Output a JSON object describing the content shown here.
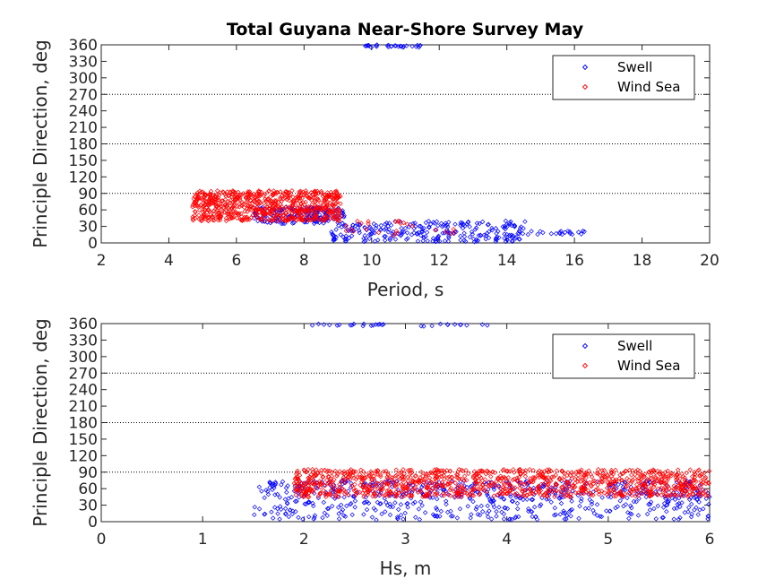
{
  "figure_title": "Total Guyana Near-Shore Survey May",
  "chart_data": [
    {
      "type": "scatter",
      "title": "Total Guyana Near-Shore Survey May",
      "xlabel": "Period, s",
      "ylabel": "Principle Direction, deg",
      "xlim": [
        2,
        20
      ],
      "ylim": [
        0,
        360
      ],
      "xticks": [
        "2",
        "4",
        "6",
        "8",
        "10",
        "12",
        "14",
        "16",
        "18",
        "20"
      ],
      "yticks": [
        "0",
        "30",
        "60",
        "90",
        "120",
        "150",
        "180",
        "210",
        "240",
        "270",
        "300",
        "330",
        "360"
      ],
      "reference_lines_y": [
        90,
        180,
        270
      ],
      "grid": false,
      "legend_position": "top-right",
      "marker": "diamond",
      "series": [
        {
          "name": "Swell",
          "color": "#0000ff",
          "clusters": [
            {
              "x_range": [
                6.5,
                9.2
              ],
              "y_range": [
                35,
                65
              ],
              "count": 180
            },
            {
              "x_range": [
                8.8,
                14.6
              ],
              "y_range": [
                2,
                40
              ],
              "count": 260
            },
            {
              "x_range": [
                14.6,
                16.3
              ],
              "y_range": [
                15,
                22
              ],
              "count": 20
            },
            {
              "x_range": [
                9.8,
                11.5
              ],
              "y_range": [
                355,
                360
              ],
              "count": 30
            }
          ]
        },
        {
          "name": "Wind Sea",
          "color": "#ff0000",
          "clusters": [
            {
              "x_range": [
                4.7,
                9.1
              ],
              "y_range": [
                40,
                95
              ],
              "count": 700
            },
            {
              "x_range": [
                9.0,
                12.5
              ],
              "y_range": [
                10,
                40
              ],
              "count": 25
            }
          ]
        }
      ]
    },
    {
      "type": "scatter",
      "title": "",
      "xlabel": "Hs, m",
      "ylabel": "Principle Direction, deg",
      "xlim": [
        0,
        6
      ],
      "ylim": [
        0,
        360
      ],
      "xticks": [
        "0",
        "1",
        "2",
        "3",
        "4",
        "5",
        "6"
      ],
      "yticks": [
        "0",
        "30",
        "60",
        "90",
        "120",
        "150",
        "180",
        "210",
        "240",
        "270",
        "300",
        "330",
        "360"
      ],
      "reference_lines_y": [
        90,
        180,
        270
      ],
      "grid": false,
      "legend_position": "top-right",
      "marker": "diamond",
      "series": [
        {
          "name": "Swell",
          "color": "#0000ff",
          "clusters": [
            {
              "x_range": [
                1.55,
                6.0
              ],
              "y_range": [
                40,
                75
              ],
              "count": 400
            },
            {
              "x_range": [
                1.5,
                6.0
              ],
              "y_range": [
                3,
                38
              ],
              "count": 260
            },
            {
              "x_range": [
                2.05,
                3.9
              ],
              "y_range": [
                355,
                360
              ],
              "count": 30
            }
          ]
        },
        {
          "name": "Wind Sea",
          "color": "#ff0000",
          "clusters": [
            {
              "x_range": [
                1.9,
                6.0
              ],
              "y_range": [
                45,
                95
              ],
              "count": 1100
            }
          ]
        }
      ]
    }
  ]
}
